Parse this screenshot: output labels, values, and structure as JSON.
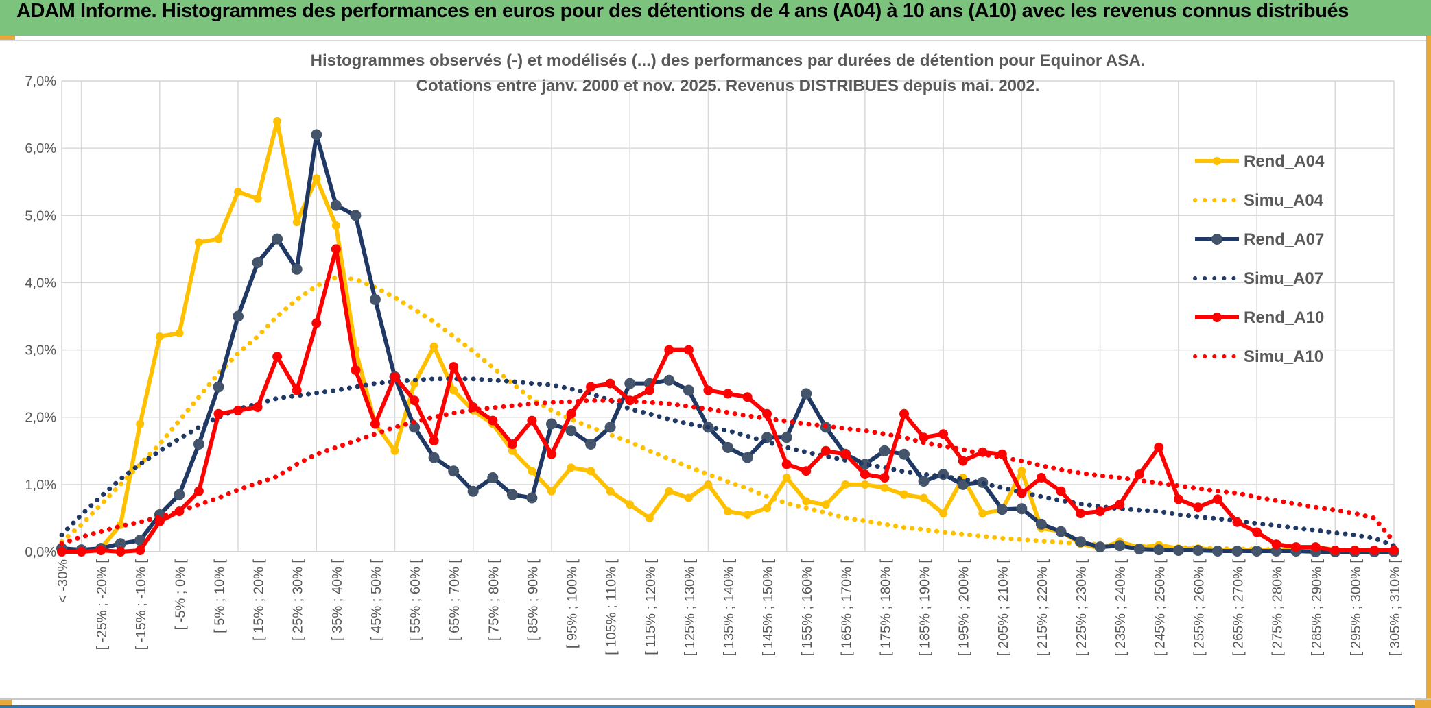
{
  "header": {
    "title": "ADAM Informe. Histogrammes des performances en euros pour des détentions de 4 ans (A04) à 10 ans (A10) avec les revenus connus distribués"
  },
  "chart": {
    "title_line1": "Histogrammes observés (-) et modélisés (...) des performances par durées de détention pour Equinor ASA.",
    "title_line2": "Cotations entre janv. 2000 et nov. 2025. Revenus DISTRIBUES depuis mai. 2002."
  },
  "theme": {
    "header_green": "#7cc47e",
    "gold_accent": "#e8a93b",
    "blue_accent": "#2e75b6",
    "text_gray": "#595959",
    "gridline": "#d9d9d9",
    "axis_line": "#bfbfbf"
  },
  "chart_data": {
    "type": "line",
    "title": "Histogrammes observés (-) et modélisés (...) des performances par durées de détention pour Equinor ASA. Cotations entre janv. 2000 et nov. 2025. Revenus DISTRIBUES depuis mai. 2002.",
    "xlabel": "",
    "ylabel": "",
    "ylim": [
      0,
      7
    ],
    "y_tick_labels": [
      "0,0%",
      "1,0%",
      "2,0%",
      "3,0%",
      "4,0%",
      "5,0%",
      "6,0%",
      "7,0%"
    ],
    "x_labels_every": 2,
    "grid": true,
    "legend_position": "right",
    "categories": [
      "< -30%",
      "[ -30% ; -25% [",
      "[ -25% ; -20% [",
      "[ -20% ; -15% [",
      "[ -15% ; -10% [",
      "[ -10% ; -5% [",
      "[ -5% ; 0% [",
      "[ 0% ; 5% [",
      "[ 5% ; 10% [",
      "[ 10% ; 15% [",
      "[ 15% ; 20% [",
      "[ 20% ; 25% [",
      "[ 25% ; 30% [",
      "[ 30% ; 35% [",
      "[ 35% ; 40% [",
      "[ 40% ; 45% [",
      "[ 45% ; 50% [",
      "[ 50% ; 55% [",
      "[ 55% ; 60% [",
      "[ 60% ; 65% [",
      "[ 65% ; 70% [",
      "[ 70% ; 75% [",
      "[ 75% ; 80% [",
      "[ 80% ; 85% [",
      "[ 85% ; 90% [",
      "[ 90% ; 95% [",
      "[ 95% ; 100% [",
      "[ 100% ; 105% [",
      "[ 105% ; 110% [",
      "[ 110% ; 115% [",
      "[ 115% ; 120% [",
      "[ 120% ; 125% [",
      "[ 125% ; 130% [",
      "[ 130% ; 135% [",
      "[ 135% ; 140% [",
      "[ 140% ; 145% [",
      "[ 145% ; 150% [",
      "[ 150% ; 155% [",
      "[ 155% ; 160% [",
      "[ 160% ; 165% [",
      "[ 165% ; 170% [",
      "[ 170% ; 175% [",
      "[ 175% ; 180% [",
      "[ 180% ; 185% [",
      "[ 185% ; 190% [",
      "[ 190% ; 195% [",
      "[ 195% ; 200% [",
      "[ 200% ; 205% [",
      "[ 205% ; 210% [",
      "[ 210% ; 215% [",
      "[ 215% ; 220% [",
      "[ 220% ; 225% [",
      "[ 225% ; 230% [",
      "[ 230% ; 235% [",
      "[ 235% ; 240% [",
      "[ 240% ; 245% [",
      "[ 245% ; 250% [",
      "[ 250% ; 255% [",
      "[ 255% ; 260% [",
      "[ 260% ; 265% [",
      "[ 265% ; 270% [",
      "[ 270% ; 275% [",
      "[ 275% ; 280% [",
      "[ 280% ; 285% [",
      "[ 285% ; 290% [",
      "[ 290% ; 295% [",
      "[ 295% ; 300% [",
      "[ 300% ; 305% [",
      "[ 305% ; 310% ["
    ],
    "series": [
      {
        "name": "Rend_A04",
        "style": "solid",
        "color": "#FFC000",
        "marker_color": "#FFC000",
        "marker_r": 6,
        "values": [
          0,
          0.02,
          0.05,
          0.4,
          1.9,
          3.2,
          3.25,
          4.6,
          4.65,
          5.35,
          5.25,
          6.4,
          4.9,
          5.55,
          4.85,
          3.0,
          1.9,
          1.5,
          2.5,
          3.05,
          2.4,
          2.1,
          1.9,
          1.5,
          1.2,
          0.9,
          1.25,
          1.2,
          0.9,
          0.7,
          0.5,
          0.9,
          0.8,
          1.0,
          0.6,
          0.55,
          0.65,
          1.1,
          0.75,
          0.7,
          1.0,
          1.0,
          0.95,
          0.85,
          0.8,
          0.57,
          1.1,
          0.57,
          0.62,
          1.2,
          0.35,
          0.3,
          0.12,
          0.05,
          0.15,
          0.06,
          0.1,
          0.05,
          0.05,
          0.03,
          0.03,
          0.02,
          0.03,
          0.02,
          0.07,
          0.03,
          0.02,
          0.01,
          0.01
        ]
      },
      {
        "name": "Simu_A04",
        "style": "dotted",
        "color": "#FFC000",
        "values": [
          0.15,
          0.4,
          0.7,
          1.0,
          1.3,
          1.6,
          1.95,
          2.3,
          2.65,
          2.95,
          3.2,
          3.5,
          3.75,
          3.95,
          4.08,
          4.05,
          3.93,
          3.78,
          3.6,
          3.42,
          3.2,
          2.98,
          2.74,
          2.5,
          2.27,
          2.1,
          1.97,
          1.85,
          1.74,
          1.63,
          1.5,
          1.38,
          1.26,
          1.15,
          1.04,
          0.94,
          0.82,
          0.72,
          0.65,
          0.58,
          0.5,
          0.46,
          0.41,
          0.36,
          0.33,
          0.29,
          0.26,
          0.23,
          0.2,
          0.18,
          0.16,
          0.14,
          0.12,
          0.11,
          0.09,
          0.08,
          0.07,
          0.06,
          0.06,
          0.05,
          0.04,
          0.04,
          0.03,
          0.03,
          0.02,
          0.02,
          0.02,
          0.01,
          0.01
        ]
      },
      {
        "name": "Rend_A07",
        "style": "solid",
        "color": "#1F3864",
        "marker_color": "#44546A",
        "marker_r": 8,
        "values": [
          0.05,
          0.03,
          0.05,
          0.12,
          0.17,
          0.55,
          0.85,
          1.6,
          2.45,
          3.5,
          4.3,
          4.65,
          4.2,
          6.2,
          5.15,
          5.0,
          3.75,
          2.6,
          1.85,
          1.4,
          1.2,
          0.9,
          1.1,
          0.85,
          0.8,
          1.9,
          1.8,
          1.6,
          1.85,
          2.5,
          2.5,
          2.55,
          2.4,
          1.85,
          1.55,
          1.4,
          1.7,
          1.7,
          2.35,
          1.85,
          1.45,
          1.3,
          1.5,
          1.45,
          1.05,
          1.15,
          1.0,
          1.03,
          0.63,
          0.64,
          0.41,
          0.3,
          0.15,
          0.07,
          0.09,
          0.04,
          0.03,
          0.02,
          0.02,
          0.01,
          0.01,
          0.01,
          0.01,
          0.01,
          0,
          0,
          0,
          0,
          0
        ]
      },
      {
        "name": "Simu_A07",
        "style": "dotted",
        "color": "#1F3864",
        "values": [
          0.25,
          0.55,
          0.82,
          1.08,
          1.3,
          1.5,
          1.68,
          1.85,
          2.0,
          2.12,
          2.2,
          2.28,
          2.32,
          2.36,
          2.4,
          2.45,
          2.5,
          2.53,
          2.55,
          2.57,
          2.57,
          2.57,
          2.55,
          2.53,
          2.5,
          2.48,
          2.42,
          2.35,
          2.25,
          2.12,
          2.05,
          1.97,
          1.9,
          1.85,
          1.8,
          1.72,
          1.63,
          1.55,
          1.48,
          1.42,
          1.36,
          1.3,
          1.25,
          1.19,
          1.15,
          1.12,
          1.08,
          1.02,
          0.95,
          0.88,
          0.82,
          0.76,
          0.71,
          0.67,
          0.64,
          0.62,
          0.6,
          0.55,
          0.52,
          0.49,
          0.46,
          0.42,
          0.39,
          0.35,
          0.32,
          0.28,
          0.25,
          0.2,
          0.09
        ]
      },
      {
        "name": "Rend_A10",
        "style": "solid",
        "color": "#FF0000",
        "marker_color": "#FF0000",
        "marker_r": 7,
        "values": [
          0,
          0,
          0.02,
          0,
          0.02,
          0.45,
          0.6,
          0.9,
          2.05,
          2.1,
          2.15,
          2.9,
          2.4,
          3.4,
          4.5,
          2.7,
          1.9,
          2.6,
          2.25,
          1.65,
          2.75,
          2.15,
          1.95,
          1.6,
          1.95,
          1.45,
          2.05,
          2.45,
          2.5,
          2.25,
          2.4,
          3.0,
          3.0,
          2.4,
          2.35,
          2.3,
          2.05,
          1.3,
          1.2,
          1.5,
          1.45,
          1.15,
          1.1,
          2.05,
          1.7,
          1.75,
          1.35,
          1.48,
          1.45,
          0.87,
          1.1,
          0.9,
          0.57,
          0.6,
          0.7,
          1.15,
          1.55,
          0.78,
          0.66,
          0.78,
          0.44,
          0.29,
          0.11,
          0.07,
          0.07,
          0.02,
          0.02,
          0.02,
          0.02
        ]
      },
      {
        "name": "Simu_A10",
        "style": "dotted",
        "color": "#FF0000",
        "values": [
          0.12,
          0.22,
          0.3,
          0.38,
          0.44,
          0.52,
          0.6,
          0.7,
          0.8,
          0.92,
          1.02,
          1.12,
          1.3,
          1.45,
          1.55,
          1.65,
          1.75,
          1.85,
          1.93,
          2.0,
          2.06,
          2.11,
          2.14,
          2.17,
          2.2,
          2.22,
          2.23,
          2.25,
          2.25,
          2.24,
          2.22,
          2.2,
          2.16,
          2.12,
          2.07,
          2.02,
          1.98,
          1.94,
          1.9,
          1.87,
          1.83,
          1.8,
          1.75,
          1.7,
          1.62,
          1.57,
          1.52,
          1.45,
          1.4,
          1.35,
          1.28,
          1.22,
          1.17,
          1.13,
          1.1,
          1.06,
          1.02,
          0.98,
          0.94,
          0.9,
          0.87,
          0.81,
          0.76,
          0.71,
          0.66,
          0.62,
          0.57,
          0.5,
          0.15
        ]
      }
    ]
  }
}
